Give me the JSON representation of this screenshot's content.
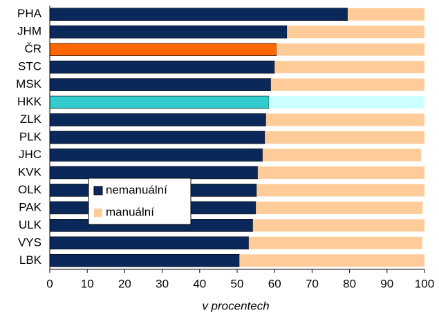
{
  "chart_data": {
    "type": "stacked_barh",
    "categories": [
      "PHA",
      "JHM",
      "ČR",
      "STC",
      "MSK",
      "HKK",
      "ZLK",
      "PLK",
      "JHC",
      "KVK",
      "OLK",
      "PAK",
      "ULK",
      "VYS",
      "LBK"
    ],
    "series": [
      {
        "name": "nemanuální",
        "color": "#0a2859",
        "colors": [
          "#0a2859",
          "#0a2859",
          "#ff6600",
          "#0a2859",
          "#0a2859",
          "#33cccc",
          "#0a2859",
          "#0a2859",
          "#0a2859",
          "#0a2859",
          "#0a2859",
          "#0a2859",
          "#0a2859",
          "#0a2859",
          "#0a2859"
        ],
        "values": [
          79.5,
          63.3,
          60.5,
          60,
          59,
          58.5,
          57.7,
          57.4,
          56.8,
          55.5,
          55.2,
          55,
          54.2,
          53.1,
          50.6
        ]
      },
      {
        "name": "manuální",
        "color": "#ffcc99",
        "colors": [
          "#ffcc99",
          "#ffcc99",
          "#ffcc99",
          "#ffcc99",
          "#ffcc99",
          "#ccffff",
          "#ffcc99",
          "#ffcc99",
          "#ffcc99",
          "#ffcc99",
          "#ffcc99",
          "#ffcc99",
          "#ffcc99",
          "#ffcc99",
          "#ffcc99"
        ],
        "values": [
          20.5,
          36.7,
          39.5,
          40,
          41,
          41.5,
          42.3,
          42.6,
          42.3,
          44.5,
          44.8,
          44.5,
          45.8,
          46.3,
          49.4
        ]
      }
    ],
    "xlabel": "v procentech",
    "xlim": [
      0,
      100
    ],
    "xticks": [
      0,
      10,
      20,
      30,
      40,
      50,
      60,
      70,
      80,
      90,
      100
    ],
    "legend": "left"
  }
}
